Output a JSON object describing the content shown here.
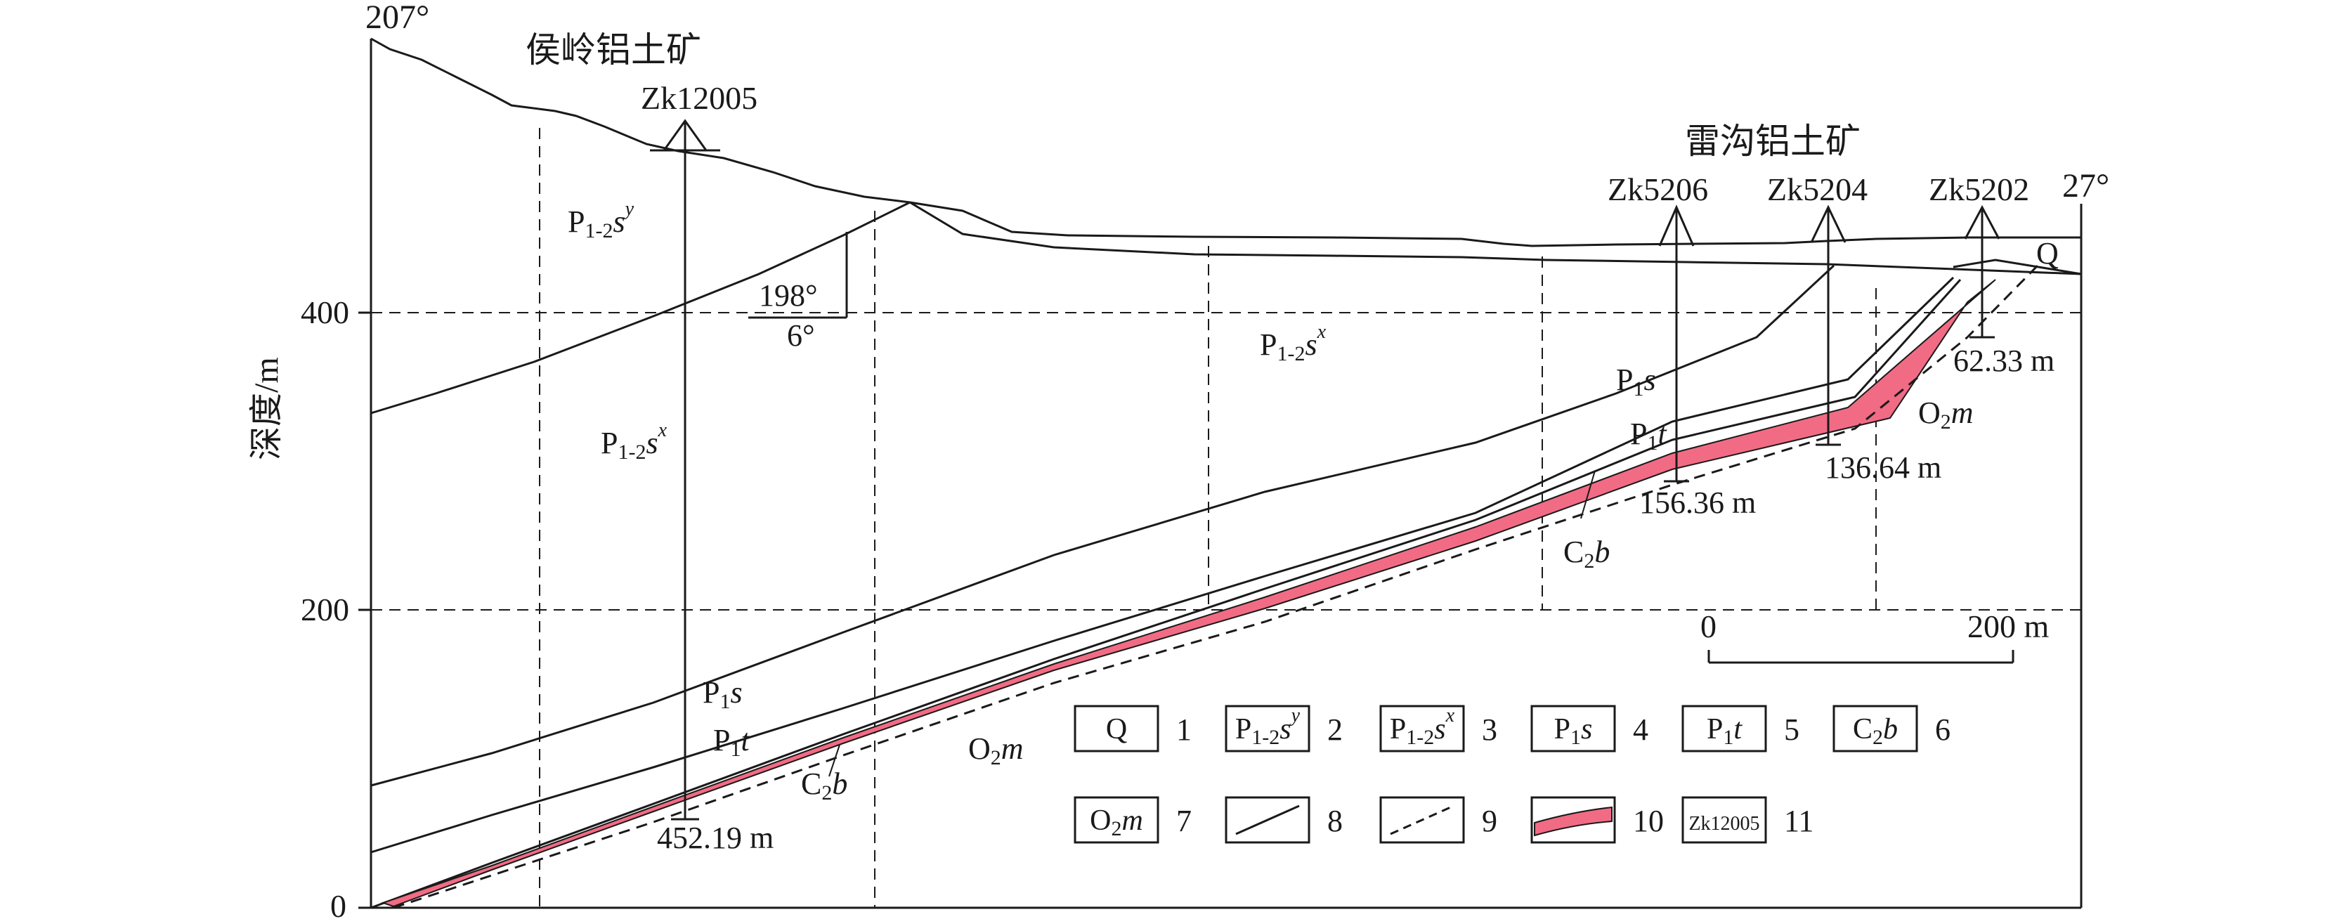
{
  "corners": {
    "left_azimuth": "207°",
    "right_azimuth": "27°"
  },
  "y_axis": {
    "label": "深度/m",
    "ticks": [
      "400",
      "200",
      "0"
    ]
  },
  "mines": {
    "houling": "侯岭铝土矿",
    "leigou": "雷沟铝土矿"
  },
  "boreholes": {
    "zk12005": {
      "name": "Zk12005",
      "depth": "452.19 m"
    },
    "zk5206": {
      "name": "Zk5206",
      "depth": "156.36 m"
    },
    "zk5204": {
      "name": "Zk5204",
      "depth": "136.64 m"
    },
    "zk5202": {
      "name": "Zk5202",
      "depth": "62.33 m"
    }
  },
  "attitude": {
    "dip_direction": "198°",
    "dip_angle": "6°"
  },
  "strata_labels": {
    "P12sy_left": "P1-2sy",
    "P12sx_left": "P1-2sx",
    "P12sx_center": "P1-2sx",
    "P1s_left": "P1s",
    "P1t_left": "P1t",
    "C2b_left": "C2b",
    "O2m_left": "O2m",
    "P1s_right": "P1s",
    "P1t_right": "P1t",
    "C2b_right": "C2b",
    "O2m_right": "O2m",
    "Q_right": "Q"
  },
  "scale_bar": {
    "start": "0",
    "end": "200 m"
  },
  "legend": [
    {
      "num": "1",
      "symbol": "Q"
    },
    {
      "num": "2",
      "symbol": "P1-2sy"
    },
    {
      "num": "3",
      "symbol": "P1-2sx"
    },
    {
      "num": "4",
      "symbol": "P1s"
    },
    {
      "num": "5",
      "symbol": "P1t"
    },
    {
      "num": "6",
      "symbol": "C2b"
    },
    {
      "num": "7",
      "symbol": "O2m"
    },
    {
      "num": "8",
      "symbol": "solid-line"
    },
    {
      "num": "9",
      "symbol": "dashed-line"
    },
    {
      "num": "10",
      "symbol": "ore-body"
    },
    {
      "num": "11",
      "symbol": "Zk12005"
    }
  ],
  "colors": {
    "ore_body": "#f26b84",
    "line": "#1a1a1a"
  }
}
